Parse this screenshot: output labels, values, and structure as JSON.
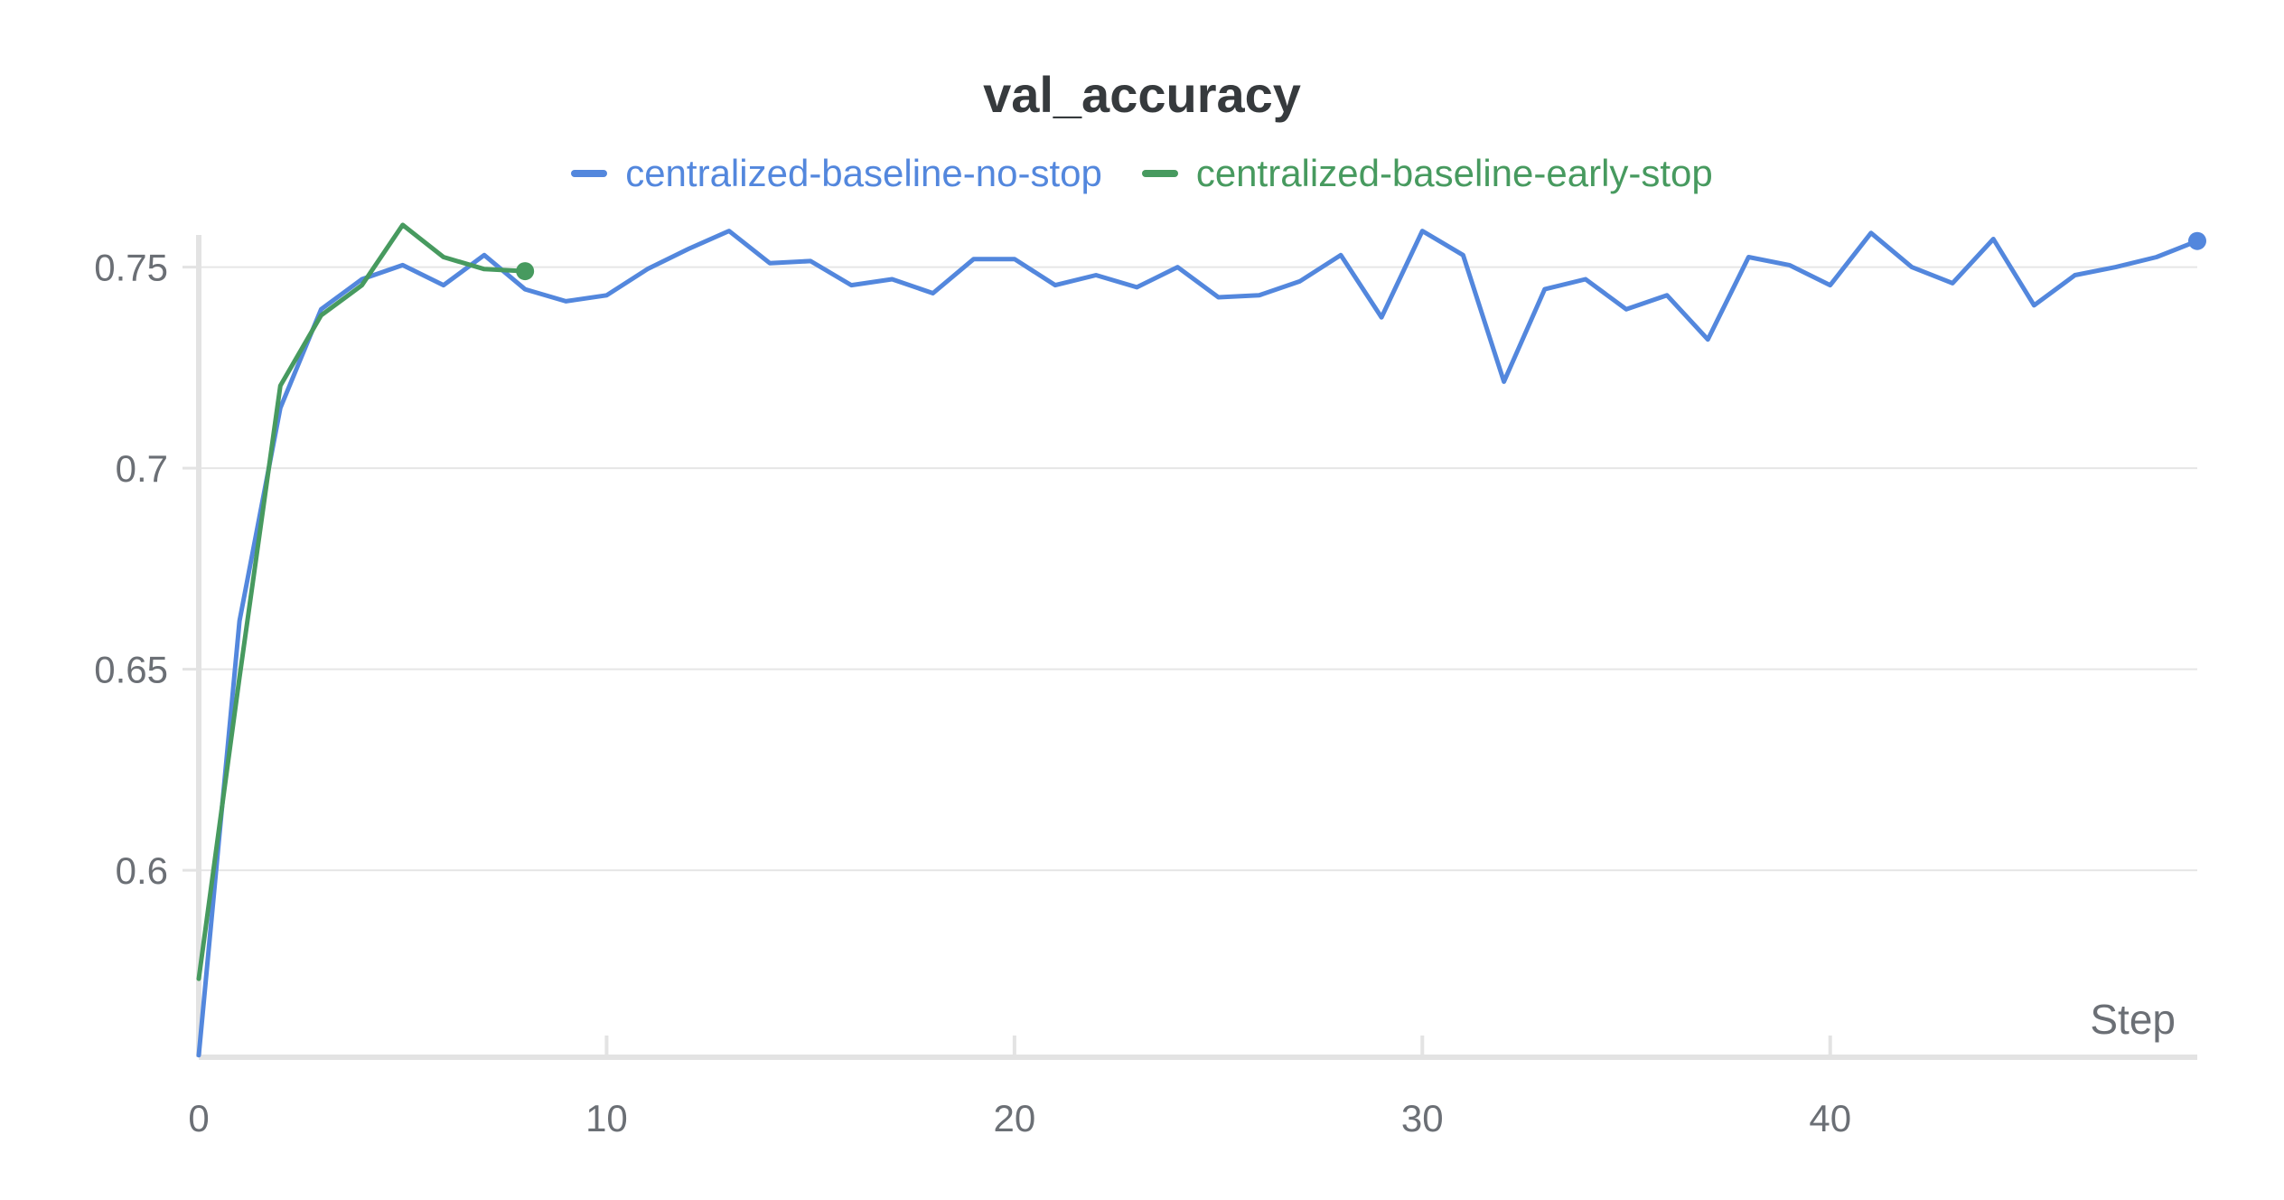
{
  "chart_data": {
    "type": "line",
    "title": "val_accuracy",
    "xlabel": "Step",
    "ylabel": "",
    "xlim": [
      0,
      49
    ],
    "ylim": [
      0.5535,
      0.7625
    ],
    "x_ticks": [
      0,
      10,
      20,
      30,
      40
    ],
    "x_tick_labels": [
      "0",
      "10",
      "20",
      "30",
      "40"
    ],
    "y_ticks": [
      0.6,
      0.65,
      0.7,
      0.75
    ],
    "y_tick_labels": [
      "0.6",
      "0.65",
      "0.7",
      "0.75"
    ],
    "grid": "horizontal",
    "legend_position": "top-center",
    "series": [
      {
        "name": "centralized-baseline-no-stop",
        "color": "#5387dd",
        "x": [
          0,
          1,
          2,
          3,
          4,
          5,
          6,
          7,
          8,
          9,
          10,
          11,
          12,
          13,
          14,
          15,
          16,
          17,
          18,
          19,
          20,
          21,
          22,
          23,
          24,
          25,
          26,
          27,
          28,
          29,
          30,
          31,
          32,
          33,
          34,
          35,
          36,
          37,
          38,
          39,
          40,
          41,
          42,
          43,
          44,
          45,
          46,
          47,
          48,
          49
        ],
        "values": [
          0.554,
          0.662,
          0.715,
          0.7395,
          0.747,
          0.7505,
          0.7455,
          0.753,
          0.7445,
          0.7415,
          0.743,
          0.7495,
          0.7545,
          0.759,
          0.751,
          0.7515,
          0.7455,
          0.747,
          0.7435,
          0.752,
          0.752,
          0.7455,
          0.748,
          0.745,
          0.75,
          0.7425,
          0.743,
          0.7465,
          0.753,
          0.7375,
          0.759,
          0.753,
          0.7215,
          0.7445,
          0.747,
          0.7395,
          0.743,
          0.732,
          0.7525,
          0.7505,
          0.7455,
          0.7585,
          0.75,
          0.746,
          0.757,
          0.7405,
          0.748,
          0.75,
          0.7525,
          0.7565
        ]
      },
      {
        "name": "centralized-baseline-early-stop",
        "color": "#479a5f",
        "x": [
          0,
          1,
          2,
          3,
          4,
          5,
          6,
          7,
          8
        ],
        "values": [
          0.573,
          0.648,
          0.7205,
          0.738,
          0.7455,
          0.7605,
          0.7525,
          0.7495,
          0.749
        ]
      }
    ]
  }
}
